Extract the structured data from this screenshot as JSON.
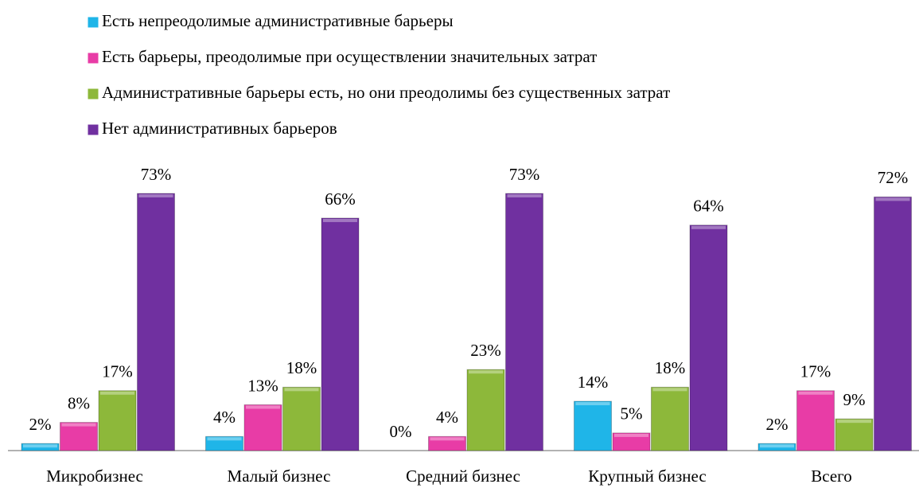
{
  "chart_data": {
    "type": "bar",
    "categories": [
      "Микробизнес",
      "Малый бизнес",
      "Средний бизнес",
      "Крупный бизнес",
      "Всего"
    ],
    "series": [
      {
        "name": "Есть непреодолимые административные барьеры",
        "color": "#1fb5e8",
        "values": [
          2,
          4,
          0,
          14,
          2
        ],
        "value_labels": [
          "2%",
          "4%",
          "0%",
          "14%",
          "2%"
        ]
      },
      {
        "name": "Есть барьеры, преодолимые при осуществлении значительных затрат",
        "color": "#e83ca6",
        "values": [
          8,
          13,
          4,
          5,
          17
        ],
        "value_labels": [
          "8%",
          "13%",
          "4%",
          "5%",
          "17%"
        ]
      },
      {
        "name": "Административные барьеры есть, но они преодолимы без существенных затрат",
        "color": "#8db83a",
        "values": [
          17,
          18,
          23,
          18,
          9
        ],
        "value_labels": [
          "17%",
          "18%",
          "23%",
          "18%",
          "9%"
        ]
      },
      {
        "name": "Нет административных барьеров",
        "color": "#7030a0",
        "values": [
          73,
          66,
          73,
          64,
          72
        ],
        "value_labels": [
          "73%",
          "66%",
          "73%",
          "64%",
          "72%"
        ]
      }
    ],
    "ylim": [
      0,
      80
    ],
    "legend": "top"
  }
}
